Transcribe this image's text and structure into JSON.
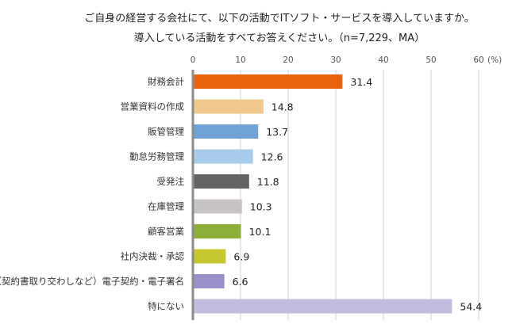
{
  "chart_data": {
    "type": "bar",
    "orientation": "horizontal",
    "title": "ご自身の経営する会社にて、以下の活動でITソフト・サービスを導入していますか。",
    "subtitle": "導入している活動をすべてお答えください。（n=7,229、MA）",
    "xlabel": "",
    "ylabel": "",
    "unit_label": "(%)",
    "xlim": [
      0,
      60
    ],
    "ticks": [
      "0",
      "10",
      "20",
      "30",
      "40",
      "50",
      "60"
    ],
    "tick_values": [
      0,
      10,
      20,
      30,
      40,
      50,
      60
    ],
    "grid": true,
    "legend": "none",
    "categories": [
      "財務会計",
      "営業資料の作成",
      "販管管理",
      "勤怠労務管理",
      "受発注",
      "在庫管理",
      "顧客営業",
      "社内決裁・承認",
      "（契約書取り交わしなど）電子契約・電子署名",
      "特にない"
    ],
    "values": [
      31.4,
      14.8,
      13.7,
      12.6,
      11.8,
      10.3,
      10.1,
      6.9,
      6.6,
      54.4
    ],
    "value_labels": [
      "31.4",
      "14.8",
      "13.7",
      "12.6",
      "11.8",
      "10.3",
      "10.1",
      "6.9",
      "6.6",
      "54.4"
    ],
    "colors": [
      "#E8650E",
      "#F0C88E",
      "#70A2D4",
      "#A8CCEB",
      "#646464",
      "#C9C4C4",
      "#8DB03A",
      "#C6C62E",
      "#9B8FC7",
      "#C4BCDF"
    ]
  }
}
